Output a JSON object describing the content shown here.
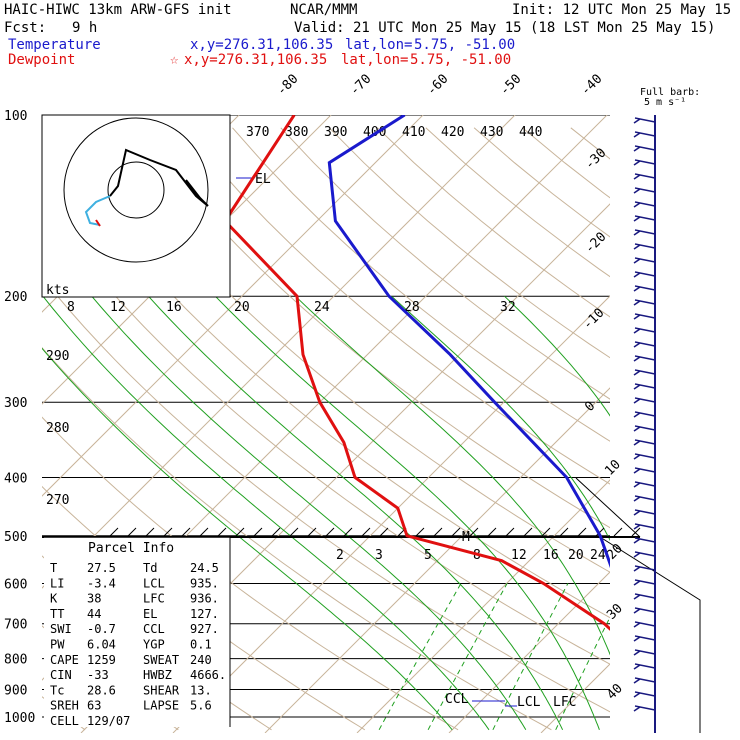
{
  "header": {
    "model": "HAIC-HIWC 13km ARW-GFS init",
    "org": "NCAR/MMM",
    "init": "Init: 12 UTC Mon 25 May 15",
    "fcst_label": "Fcst:",
    "fcst_value": "9 h",
    "valid": "Valid: 21 UTC Mon 25 May 15 (18 LST Mon 25 May 15)",
    "temp_label": "Temperature",
    "temp_xy": "x,y=276.31,106.35",
    "temp_latlon_label": "lat,lon=",
    "temp_latlon": "5.75, -51.00",
    "dew_label": "Dewpoint",
    "dew_marker": "☆",
    "dew_xy": "x,y=276.31,106.35",
    "dew_latlon_label": "lat,lon=",
    "dew_latlon": "5.75, -51.00",
    "barb_title_1": "Full barb:",
    "barb_title_2": "5 m s⁻¹"
  },
  "colors": {
    "temperature": "#1a1acc",
    "dewpoint": "#e01010",
    "isotherm": "#c8b49a",
    "mixing": "#20a020",
    "barb": "#1a1a80"
  },
  "chart_data": {
    "type": "skew-t",
    "y_axis": {
      "scale": "log-pressure",
      "unit": "hPa",
      "range": [
        1000,
        100
      ],
      "ticks": [
        100,
        200,
        300,
        400,
        500,
        600,
        700,
        800,
        900,
        1000
      ]
    },
    "isotherm_labels": [
      -80,
      -70,
      -60,
      -50,
      -40,
      -30,
      -20,
      -10,
      0,
      10,
      20,
      30,
      40
    ],
    "theta_labels": [
      370,
      380,
      390,
      400,
      410,
      420,
      430,
      440
    ],
    "theta_left_labels": [
      290,
      280,
      270
    ],
    "mixing_upper_labels": [
      "8",
      "12",
      "16",
      "20",
      "24",
      "28",
      "32"
    ],
    "mixing_lower_labels": [
      "2",
      "3",
      "5",
      "8",
      "12",
      "16",
      "20",
      "24"
    ],
    "temperature": [
      [
        1000,
        27.5
      ],
      [
        975,
        26
      ],
      [
        950,
        24
      ],
      [
        900,
        20
      ],
      [
        850,
        17
      ],
      [
        800,
        14.5
      ],
      [
        700,
        8.5
      ],
      [
        600,
        2
      ],
      [
        500,
        -5
      ],
      [
        400,
        -15
      ],
      [
        300,
        -31
      ],
      [
        250,
        -41
      ],
      [
        200,
        -54
      ],
      [
        150,
        -68
      ],
      [
        120,
        -75
      ],
      [
        100,
        -72
      ]
    ],
    "dewpoint": [
      [
        1000,
        24.5
      ],
      [
        975,
        24
      ],
      [
        950,
        21
      ],
      [
        900,
        19
      ],
      [
        850,
        16
      ],
      [
        800,
        13
      ],
      [
        700,
        5
      ],
      [
        600,
        -6
      ],
      [
        550,
        -13
      ],
      [
        500,
        -26
      ],
      [
        450,
        -30
      ],
      [
        400,
        -38
      ],
      [
        350,
        -43
      ],
      [
        300,
        -50
      ],
      [
        250,
        -57
      ],
      [
        200,
        -64
      ],
      [
        150,
        -80
      ],
      [
        100,
        -84
      ]
    ],
    "parcel_labels": [
      "EL",
      "CCL",
      "LCL",
      "LFC",
      "M"
    ],
    "hodograph_label": "kts"
  },
  "parcel": {
    "title": "Parcel Info",
    "rows": [
      {
        "k1": "T",
        "v1": "27.5",
        "k2": "Td",
        "v2": "24.5"
      },
      {
        "k1": "LI",
        "v1": "-3.4",
        "k2": "LCL",
        "v2": "935."
      },
      {
        "k1": "K",
        "v1": "38",
        "k2": "LFC",
        "v2": "936."
      },
      {
        "k1": "TT",
        "v1": "44",
        "k2": "EL",
        "v2": "127."
      },
      {
        "k1": "SWI",
        "v1": "-0.7",
        "k2": "CCL",
        "v2": "927."
      },
      {
        "k1": "PW",
        "v1": "6.04",
        "k2": "YGP",
        "v2": "0.1"
      },
      {
        "k1": "CAPE",
        "v1": "1259",
        "k2": "SWEAT",
        "v2": "240"
      },
      {
        "k1": "CIN",
        "v1": "-33",
        "k2": "HWBZ",
        "v2": "4666."
      },
      {
        "k1": "Tc",
        "v1": "28.6",
        "k2": "SHEAR",
        "v2": "13."
      },
      {
        "k1": "SREH",
        "v1": "63",
        "k2": "LAPSE",
        "v2": "5.6"
      },
      {
        "k1": "CELL",
        "v1": "129/07",
        "k2": "",
        "v2": ""
      }
    ]
  }
}
